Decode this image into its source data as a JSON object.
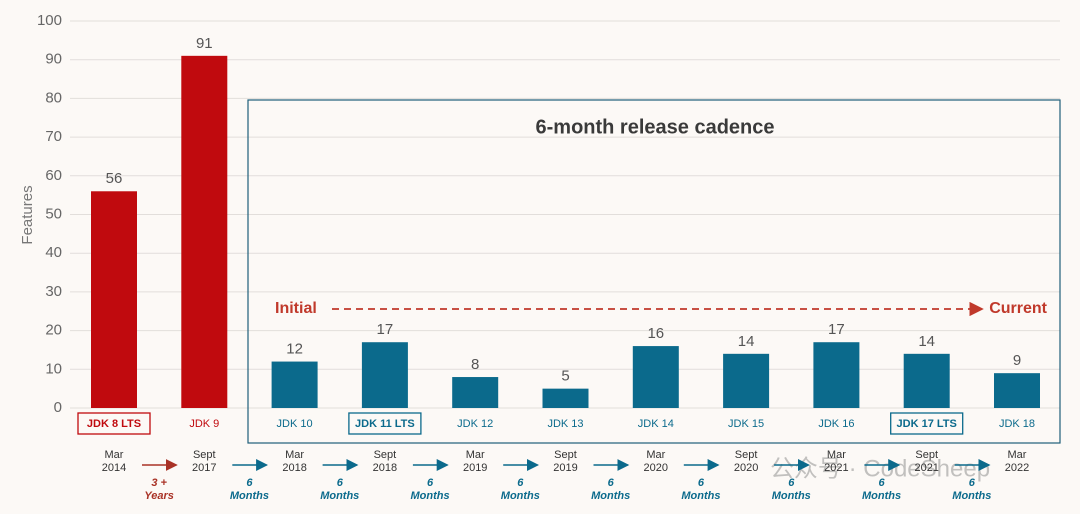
{
  "chart_data": {
    "type": "bar",
    "y_label": "Features",
    "categories": [
      "JDK 8 LTS",
      "JDK 9",
      "JDK 10",
      "JDK 11 LTS",
      "JDK 12",
      "JDK 13",
      "JDK 14",
      "JDK 15",
      "JDK 16",
      "JDK 17 LTS",
      "JDK 18"
    ],
    "values": [
      56,
      91,
      12,
      17,
      8,
      5,
      16,
      14,
      17,
      14,
      9
    ],
    "colors": [
      "#c00a0e",
      "#c00a0e",
      "#0b6a8c",
      "#0b6a8c",
      "#0b6a8c",
      "#0b6a8c",
      "#0b6a8c",
      "#0b6a8c",
      "#0b6a8c",
      "#0b6a8c",
      "#0b6a8c"
    ],
    "release_dates": [
      "Mar 2014",
      "Sept 2017",
      "Mar 2018",
      "Sept 2018",
      "Mar 2019",
      "Sept 2019",
      "Mar 2020",
      "Sept 2020",
      "Mar 2021",
      "Sept 2021",
      "Mar 2022"
    ],
    "intervals": [
      "3 + Years",
      "6 Months",
      "6 Months",
      "6 Months",
      "6 Months",
      "6 Months",
      "6 Months",
      "6 Months",
      "6 Months",
      "6 Months"
    ],
    "ylim": [
      0,
      100
    ],
    "yticks": [
      0,
      10,
      20,
      30,
      40,
      50,
      60,
      70,
      80,
      90,
      100
    ],
    "grid": true,
    "annotations": {
      "box_title": "6-month release cadence",
      "start": "Initial",
      "end": "Current"
    },
    "watermark": "公众号 · CodeSheep"
  }
}
